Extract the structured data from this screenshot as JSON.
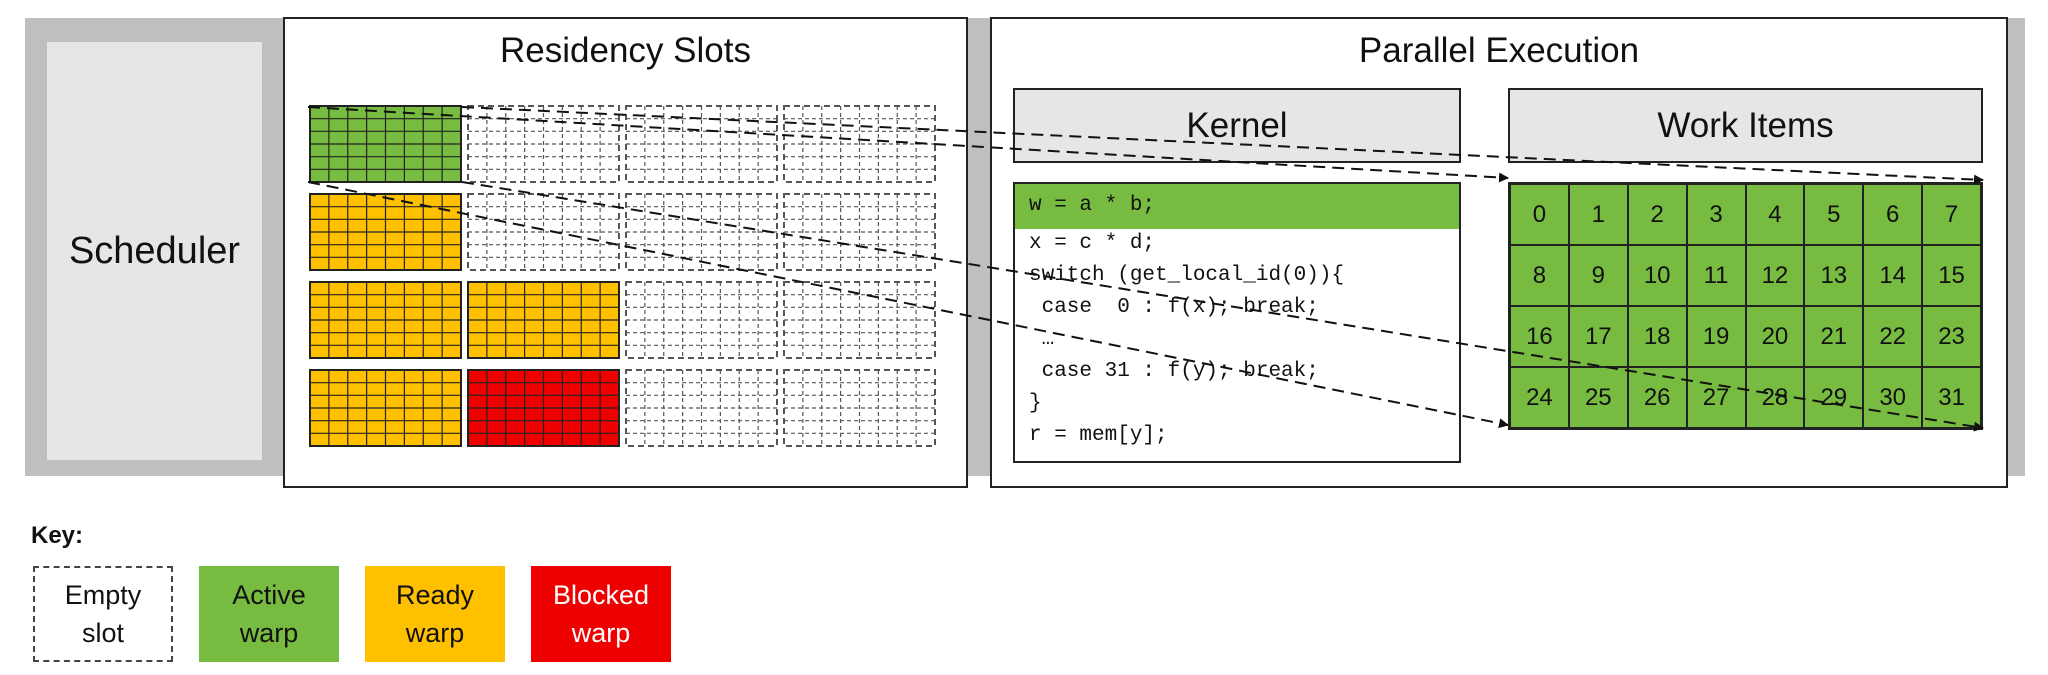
{
  "scheduler": {
    "label": "Scheduler"
  },
  "residency": {
    "title": "Residency Slots",
    "rows": [
      [
        "active",
        "empty",
        "empty",
        "empty"
      ],
      [
        "ready",
        "empty",
        "empty",
        "empty"
      ],
      [
        "ready",
        "ready",
        "empty",
        "empty"
      ],
      [
        "ready",
        "blocked",
        "empty",
        "empty"
      ]
    ]
  },
  "execution": {
    "title": "Parallel Execution",
    "kernel_title": "Kernel",
    "work_items_title": "Work Items",
    "code_lines": [
      "w = a * b;",
      "x = c * d;",
      "switch (get_local_id(0)){",
      " case  0 : f(x); break;",
      " …",
      " case 31 : f(y); break;",
      "}",
      "r = mem[y];"
    ],
    "work_items": [
      "0",
      "1",
      "2",
      "3",
      "4",
      "5",
      "6",
      "7",
      "8",
      "9",
      "10",
      "11",
      "12",
      "13",
      "14",
      "15",
      "16",
      "17",
      "18",
      "19",
      "20",
      "21",
      "22",
      "23",
      "24",
      "25",
      "26",
      "27",
      "28",
      "29",
      "30",
      "31"
    ]
  },
  "key": {
    "title": "Key:",
    "items": [
      {
        "state": "empty",
        "line1": "Empty",
        "line2": "slot"
      },
      {
        "state": "active",
        "line1": "Active",
        "line2": "warp"
      },
      {
        "state": "ready",
        "line1": "Ready",
        "line2": "warp"
      },
      {
        "state": "blocked",
        "line1": "Blocked",
        "line2": "warp"
      }
    ]
  },
  "colors": {
    "active": "#77bb41",
    "ready": "#ffc000",
    "blocked": "#ee0000",
    "empty": "#ffffff",
    "panel_gray": "#e6e6e6",
    "band_gray": "#bfbfbf"
  }
}
